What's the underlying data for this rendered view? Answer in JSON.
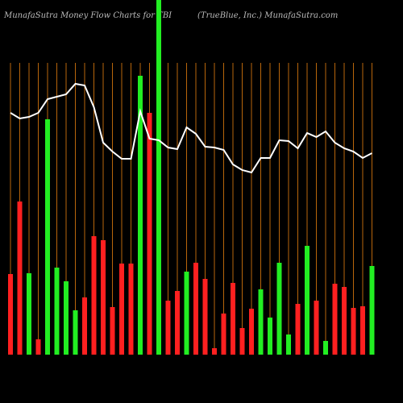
{
  "chart_data": {
    "type": "bar-line",
    "title": "MunafaSutra  Money Flow  Charts for TBI",
    "subtitle": "(TrueBlue, Inc.) MunafaSutra.com",
    "categories": [
      null,
      null,
      null,
      null,
      null,
      null,
      null,
      null,
      null,
      null,
      null,
      null,
      null,
      null,
      null,
      null,
      null,
      null,
      null,
      null,
      null,
      null,
      null,
      null,
      null,
      null,
      null,
      null,
      null,
      null,
      null,
      null,
      null,
      null,
      null,
      null,
      null,
      null,
      null,
      null
    ],
    "values": [
      100,
      190,
      101,
      19,
      292,
      108,
      91,
      55,
      71,
      147,
      142,
      59,
      113,
      113,
      346,
      300,
      460,
      67,
      79,
      103,
      114,
      94,
      8,
      51,
      89,
      33,
      57,
      81,
      46,
      114,
      25,
      63,
      135,
      67,
      17,
      88,
      84,
      58,
      60,
      110
    ],
    "colors": [
      "#ff2020",
      "#ff2020",
      "#22ee22",
      "#ff2020",
      "#22ee22",
      "#22ee22",
      "#22ee22",
      "#22ee22",
      "#ff2020",
      "#ff2020",
      "#ff2020",
      "#ff2020",
      "#ff2020",
      "#ff2020",
      "#22ee22",
      "#ff2020",
      "#22ee22",
      "#ff2020",
      "#ff2020",
      "#22ee22",
      "#ff2020",
      "#ff2020",
      "#ff2020",
      "#ff2020",
      "#ff2020",
      "#ff2020",
      "#ff2020",
      "#22ee22",
      "#22ee22",
      "#22ee22",
      "#22ee22",
      "#ff2020",
      "#22ee22",
      "#ff2020",
      "#22ee22",
      "#ff2020",
      "#ff2020",
      "#ff2020",
      "#ff2020",
      "#22ee22"
    ],
    "line": {
      "color": "#ffffff",
      "values": [
        300,
        293,
        295,
        300,
        317,
        320,
        323,
        336,
        334,
        307,
        263,
        252,
        243,
        243,
        302,
        268,
        266,
        257,
        255,
        282,
        274,
        258,
        257,
        254,
        236,
        229,
        226,
        244,
        244,
        266,
        265,
        256,
        275,
        270,
        277,
        263,
        256,
        252,
        244,
        250
      ]
    },
    "grid_color": "#b8660b",
    "ylim": [
      0,
      440
    ]
  }
}
